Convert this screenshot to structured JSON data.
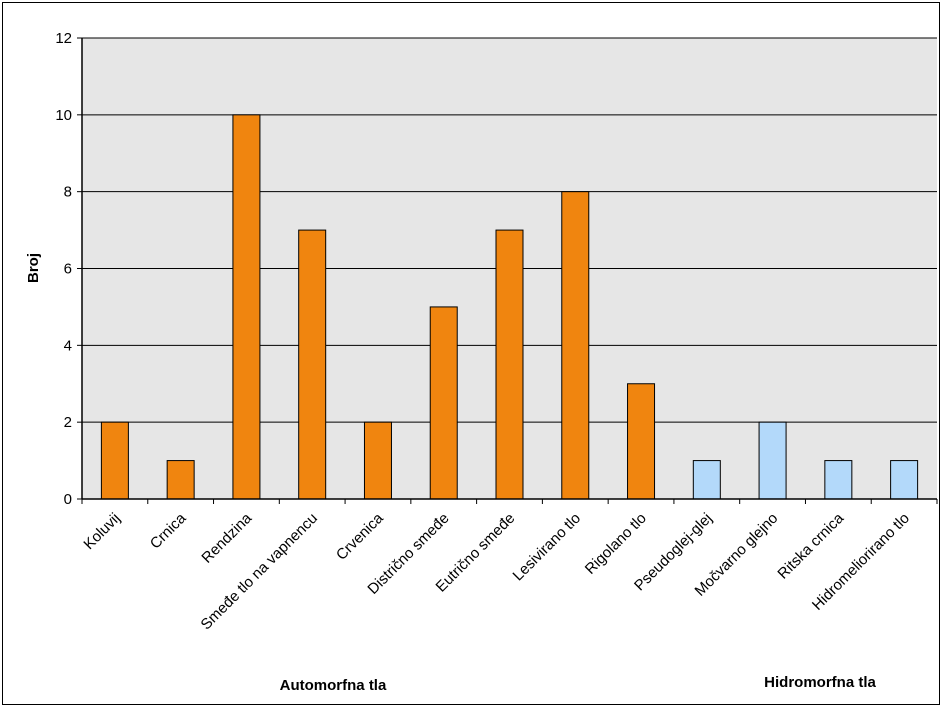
{
  "chart_data": {
    "type": "bar",
    "categories": [
      "Koluvij",
      "Crnica",
      "Rendzina",
      "Smeđe tlo na vapnencu",
      "Crvenica",
      "Distrično smeđe",
      "Eutrično smeđe",
      "Lesivirano tlo",
      "Rigolano tlo",
      "Pseudoglej-glej",
      "Močvarno glejno",
      "Ritska crnica",
      "Hidromeliorirano tlo"
    ],
    "values": [
      2,
      1,
      10,
      7,
      2,
      5,
      7,
      8,
      3,
      1,
      2,
      1,
      1
    ],
    "groups": [
      "Automorfna tla",
      "Automorfna tla",
      "Automorfna tla",
      "Automorfna tla",
      "Automorfna tla",
      "Automorfna tla",
      "Automorfna tla",
      "Automorfna tla",
      "Automorfna tla",
      "Hidromorfna tla",
      "Hidromorfna tla",
      "Hidromorfna tla",
      "Hidromorfna tla"
    ],
    "group_labels": [
      "Automorfna tla",
      "Hidromorfna tla"
    ],
    "group_colors": {
      "Automorfna tla": "#F0850F",
      "Hidromorfna tla": "#B3D9FA"
    },
    "ylabel": "Broj",
    "ylim": [
      0,
      12
    ],
    "yticks": [
      0,
      2,
      4,
      6,
      8,
      10,
      12
    ],
    "grid": true,
    "plot_background": "#E6E6E6"
  }
}
